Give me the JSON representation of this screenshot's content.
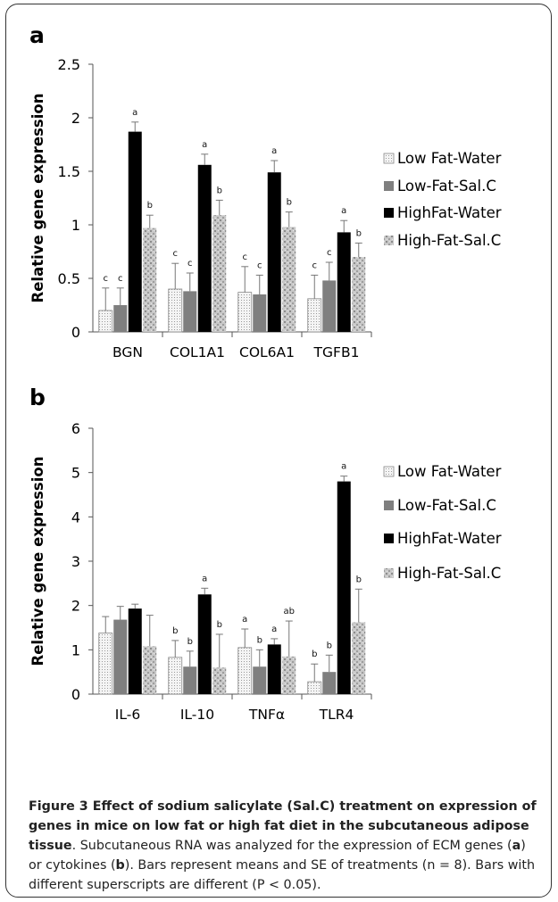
{
  "chart_data": [
    {
      "type": "bar",
      "panel_label": "a",
      "ylabel": "Relative gene expression",
      "ylim": [
        0,
        2.5
      ],
      "yticks": [
        "0",
        "0.5",
        "1",
        "1.5",
        "2",
        "2.5"
      ],
      "categories": [
        "BGN",
        "COL1A1",
        "COL6A1",
        "TGFB1"
      ],
      "series": [
        {
          "name": "Low Fat-Water",
          "values": [
            0.2,
            0.4,
            0.37,
            0.31
          ],
          "errors": [
            0.21,
            0.24,
            0.24,
            0.22
          ],
          "letters": [
            "c",
            "c",
            "c",
            "c"
          ]
        },
        {
          "name": "Low-Fat-Sal.C",
          "values": [
            0.25,
            0.38,
            0.35,
            0.48
          ],
          "errors": [
            0.16,
            0.17,
            0.18,
            0.17
          ],
          "letters": [
            "c",
            "c",
            "c",
            "c"
          ]
        },
        {
          "name": "HighFat-Water",
          "values": [
            1.87,
            1.56,
            1.49,
            0.93
          ],
          "errors": [
            0.09,
            0.1,
            0.11,
            0.11
          ],
          "letters": [
            "a",
            "a",
            "a",
            "a"
          ]
        },
        {
          "name": "High-Fat-Sal.C",
          "values": [
            0.97,
            1.09,
            0.98,
            0.7
          ],
          "errors": [
            0.12,
            0.14,
            0.14,
            0.13
          ],
          "letters": [
            "b",
            "b",
            "b",
            "b"
          ]
        }
      ],
      "legend": "right"
    },
    {
      "type": "bar",
      "panel_label": "b",
      "ylabel": "Relative gene expression",
      "ylim": [
        0,
        6
      ],
      "yticks": [
        "0",
        "1",
        "2",
        "3",
        "4",
        "5",
        "6"
      ],
      "categories": [
        "IL-6",
        "IL-10",
        "TNFα",
        "TLR4"
      ],
      "series": [
        {
          "name": "Low Fat-Water",
          "values": [
            1.38,
            0.83,
            1.05,
            0.28
          ],
          "errors": [
            0.37,
            0.38,
            0.42,
            0.4
          ],
          "letters": [
            "",
            "b",
            "a",
            "b"
          ]
        },
        {
          "name": "Low-Fat-Sal.C",
          "values": [
            1.68,
            0.62,
            0.62,
            0.5
          ],
          "errors": [
            0.3,
            0.35,
            0.38,
            0.38
          ],
          "letters": [
            "",
            "b",
            "b",
            "b"
          ]
        },
        {
          "name": "HighFat-Water",
          "values": [
            1.93,
            2.25,
            1.12,
            4.8
          ],
          "errors": [
            0.1,
            0.14,
            0.13,
            0.12
          ],
          "letters": [
            "",
            "a",
            "a",
            "a"
          ]
        },
        {
          "name": "High-Fat-Sal.C",
          "values": [
            1.08,
            0.6,
            0.85,
            1.62
          ],
          "errors": [
            0.7,
            0.75,
            0.8,
            0.75
          ],
          "letters": [
            "",
            "b",
            "ab",
            "b"
          ]
        }
      ],
      "legend": "right"
    }
  ],
  "colors": {
    "Low Fat-Water": "#f2f2f2",
    "Low-Fat-Sal.C": "#7f7f7f",
    "HighFat-Water": "#000000",
    "High-Fat-Sal.C": "#bdbdbd"
  },
  "caption": {
    "figure_label": "Figure 3",
    "title": "Effect of sodium salicylate (Sal.C) treatment on expression of genes in mice on low fat or high fat diet in the subcutaneous adipose tissue",
    "text_1": ". Subcutaneous RNA was analyzed for the expression of ECM genes (",
    "label_a": "a",
    "text_2": ") or cytokines (",
    "label_b": "b",
    "text_3": "). Bars represent means and SE of treatments (n = 8). Bars with different superscripts are different (P < 0.05)."
  }
}
